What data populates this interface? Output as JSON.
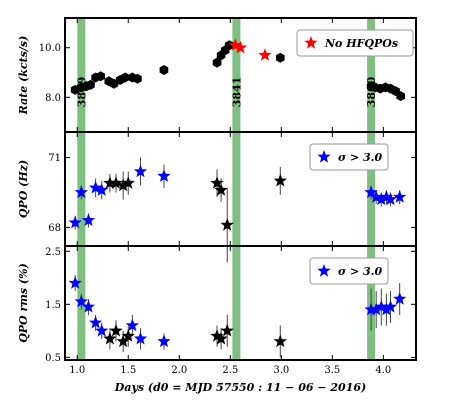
{
  "chart_data": [
    {
      "type": "scatter",
      "ylabel": "Rate (kcts/s)",
      "ylim": [
        6.6,
        11.2
      ],
      "yticks": [
        8.0,
        10.0
      ],
      "ytick_labels": [
        "8.0",
        "10.0"
      ],
      "xlim": [
        0.88,
        4.32
      ],
      "legend": {
        "label": "No HFQPOs",
        "position": "top-right"
      },
      "observations": [
        {
          "label": "3819",
          "x": 1.04
        },
        {
          "label": "3841",
          "x": 2.56
        },
        {
          "label": "3860",
          "x": 3.88
        }
      ],
      "series": [
        {
          "color": "#000000",
          "marker": "hexagon",
          "x": [
            0.98,
            1.04,
            1.09,
            1.13,
            1.18,
            1.23,
            1.31,
            1.36,
            1.42,
            1.47,
            1.54,
            1.59,
            1.85,
            2.37,
            2.41,
            2.45,
            2.49,
            2.99,
            3.88,
            3.92,
            3.97,
            4.02,
            4.07,
            4.12,
            4.17
          ],
          "y": [
            8.3,
            8.4,
            8.45,
            8.5,
            8.8,
            8.85,
            8.65,
            8.55,
            8.7,
            8.8,
            8.8,
            8.75,
            9.1,
            9.4,
            9.7,
            9.9,
            10.1,
            9.6,
            8.45,
            8.4,
            8.35,
            8.4,
            8.35,
            8.25,
            8.05
          ]
        },
        {
          "name": "No HFQPOs",
          "color": "#ff0000",
          "marker": "star",
          "x": [
            2.55,
            2.6,
            2.84
          ],
          "y": [
            10.1,
            10.0,
            9.7
          ]
        }
      ]
    },
    {
      "type": "scatter",
      "ylabel": "QPO (Hz)",
      "ylim": [
        67.2,
        72.1
      ],
      "yticks": [
        68,
        71
      ],
      "ytick_labels": [
        "68",
        "71"
      ],
      "xlim": [
        0.88,
        4.32
      ],
      "legend": {
        "label": "σ > 3.0",
        "position": "top-right"
      },
      "series": [
        {
          "name": "σ > 3.0",
          "color": "#0000ff",
          "marker": "star",
          "x": [
            0.98,
            1.04,
            1.11,
            1.18,
            1.24,
            1.62,
            1.85,
            3.88,
            3.93,
            3.98,
            4.03,
            4.07,
            4.16
          ],
          "y": [
            68.2,
            69.5,
            68.3,
            69.7,
            69.6,
            70.4,
            70.2,
            69.5,
            69.3,
            69.2,
            69.3,
            69.2,
            69.3
          ],
          "err": [
            0.3,
            0.3,
            0.3,
            0.4,
            0.4,
            0.6,
            0.5,
            0.3,
            0.3,
            0.3,
            0.3,
            0.3,
            0.3
          ]
        },
        {
          "color": "#000000",
          "marker": "star",
          "x": [
            1.32,
            1.38,
            1.45,
            1.5,
            2.37,
            2.41,
            2.47,
            2.99
          ],
          "y": [
            69.9,
            69.9,
            69.8,
            69.9,
            69.9,
            69.6,
            68.1,
            70.0
          ],
          "err": [
            0.4,
            0.4,
            0.6,
            0.5,
            0.6,
            0.5,
            1.6,
            0.6
          ]
        }
      ]
    },
    {
      "type": "scatter",
      "ylabel": "QPO rms (%)",
      "ylim": [
        0.45,
        2.6
      ],
      "yticks": [
        0.5,
        1.5,
        2.5
      ],
      "ytick_labels": [
        "0.5",
        "1.5",
        "2.5"
      ],
      "xlim": [
        0.88,
        4.32
      ],
      "xticks": [
        1.0,
        1.5,
        2.0,
        2.5,
        3.0,
        3.5,
        4.0
      ],
      "xtick_labels": [
        "1.0",
        "1.5",
        "2.0",
        "2.5",
        "3.0",
        "3.5",
        "4.0"
      ],
      "xlabel": "Days (d0 = MJD 57550 : 11 − 06 − 2016)",
      "legend": {
        "label": "σ > 3.0",
        "position": "top-right"
      },
      "series": [
        {
          "name": "σ > 3.0",
          "color": "#0000ff",
          "marker": "star",
          "x": [
            0.98,
            1.04,
            1.11,
            1.18,
            1.24,
            1.54,
            1.62,
            1.85,
            3.88,
            3.93,
            3.98,
            4.03,
            4.07,
            4.16
          ],
          "y": [
            1.9,
            1.55,
            1.45,
            1.15,
            1.0,
            1.1,
            0.85,
            0.8,
            1.4,
            1.4,
            1.45,
            1.4,
            1.45,
            1.6
          ],
          "err": [
            0.15,
            0.15,
            0.15,
            0.15,
            0.15,
            0.2,
            0.2,
            0.15,
            0.4,
            0.35,
            0.35,
            0.3,
            0.3,
            0.3
          ]
        },
        {
          "color": "#000000",
          "marker": "star",
          "x": [
            1.32,
            1.38,
            1.45,
            1.5,
            2.37,
            2.41,
            2.47,
            2.99
          ],
          "y": [
            0.85,
            1.0,
            0.8,
            0.9,
            0.9,
            0.85,
            1.0,
            0.8
          ],
          "err": [
            0.2,
            0.2,
            0.2,
            0.2,
            0.2,
            0.2,
            0.3,
            0.3
          ]
        }
      ]
    }
  ]
}
